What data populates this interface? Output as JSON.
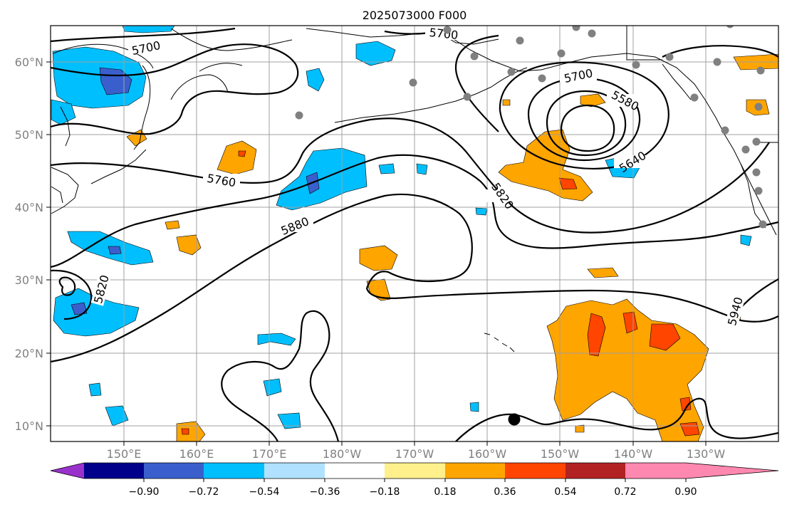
{
  "title": "2025073000 F000",
  "map": {
    "lon_ticks": [
      "150°E",
      "160°E",
      "170°E",
      "180°W",
      "170°W",
      "160°W",
      "150°W",
      "140°W",
      "130°W"
    ],
    "lat_ticks": [
      "60°N",
      "50°N",
      "40°N",
      "30°N",
      "20°N",
      "10°N"
    ],
    "contour_labels": [
      "5700",
      "5700",
      "5700",
      "5580",
      "5640",
      "5760",
      "5820",
      "5880",
      "5820",
      "5940"
    ],
    "colors": {
      "contour": "#000000",
      "coastline": "#000000",
      "grid": "#a0a0a0",
      "station_dot": "#808080",
      "storm_marker": "#000000"
    }
  },
  "colorbar": {
    "colors": [
      "#9932cc",
      "#00008b",
      "#3a5fcd",
      "#00bfff",
      "#b0e2ff",
      "#ffffff",
      "#fff08c",
      "#ffa500",
      "#ff4500",
      "#b22222",
      "#ff88b0"
    ],
    "tick_labels": [
      "−0.90",
      "−0.72",
      "−0.54",
      "−0.36",
      "−0.18",
      "0.18",
      "0.36",
      "0.54",
      "0.72",
      "0.90"
    ]
  }
}
